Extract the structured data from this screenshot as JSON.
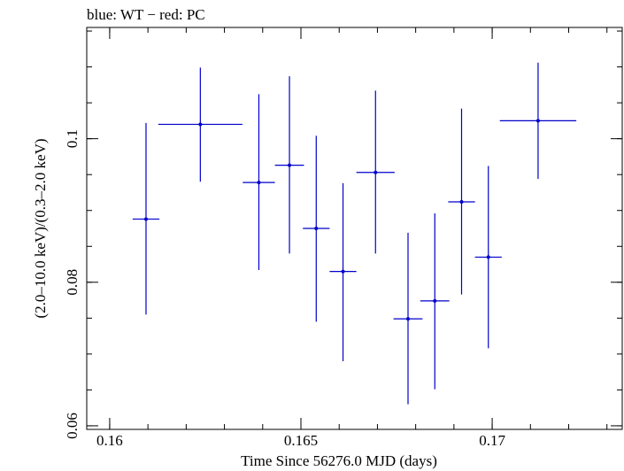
{
  "chart_data": {
    "type": "scatter",
    "title": "blue: WT − red: PC",
    "xlabel": "Time Since 56276.0 MJD (days)",
    "ylabel": "(2.0–10.0 keV)/(0.3–2.0 keV)",
    "xlim": [
      0.1594,
      0.1734
    ],
    "ylim": [
      0.0595,
      0.1155
    ],
    "x_ticks": [
      0.16,
      0.165,
      0.17
    ],
    "x_tick_labels": [
      "0.16",
      "0.165",
      "0.17"
    ],
    "x_minor_step": 0.001,
    "y_ticks": [
      0.06,
      0.08,
      0.1
    ],
    "y_tick_labels": [
      "0.06",
      "0.08",
      "0.1"
    ],
    "y_minor_step": 0.005,
    "grid": false,
    "series_color": "#0000cc",
    "points": [
      {
        "x": 0.16095,
        "xerr": 0.00035,
        "y": 0.0888,
        "y_low": 0.0755,
        "y_high": 0.1022
      },
      {
        "x": 0.16237,
        "xerr": 0.0011,
        "y": 0.102,
        "y_low": 0.094,
        "y_high": 0.1099
      },
      {
        "x": 0.1639,
        "xerr": 0.00042,
        "y": 0.0939,
        "y_low": 0.0817,
        "y_high": 0.1062
      },
      {
        "x": 0.1647,
        "xerr": 0.00038,
        "y": 0.0963,
        "y_low": 0.084,
        "y_high": 0.1087
      },
      {
        "x": 0.1654,
        "xerr": 0.00035,
        "y": 0.0875,
        "y_low": 0.0745,
        "y_high": 0.1004
      },
      {
        "x": 0.1661,
        "xerr": 0.00035,
        "y": 0.0815,
        "y_low": 0.069,
        "y_high": 0.0938
      },
      {
        "x": 0.16695,
        "xerr": 0.0005,
        "y": 0.0953,
        "y_low": 0.084,
        "y_high": 0.1067
      },
      {
        "x": 0.1678,
        "xerr": 0.00038,
        "y": 0.0749,
        "y_low": 0.063,
        "y_high": 0.0869
      },
      {
        "x": 0.1685,
        "xerr": 0.00038,
        "y": 0.0774,
        "y_low": 0.0651,
        "y_high": 0.0896
      },
      {
        "x": 0.1692,
        "xerr": 0.00035,
        "y": 0.0912,
        "y_low": 0.0783,
        "y_high": 0.1042
      },
      {
        "x": 0.1699,
        "xerr": 0.00035,
        "y": 0.0835,
        "y_low": 0.0708,
        "y_high": 0.0962
      },
      {
        "x": 0.1712,
        "xerr": 0.001,
        "y": 0.1025,
        "y_low": 0.0944,
        "y_high": 0.1106
      }
    ]
  }
}
